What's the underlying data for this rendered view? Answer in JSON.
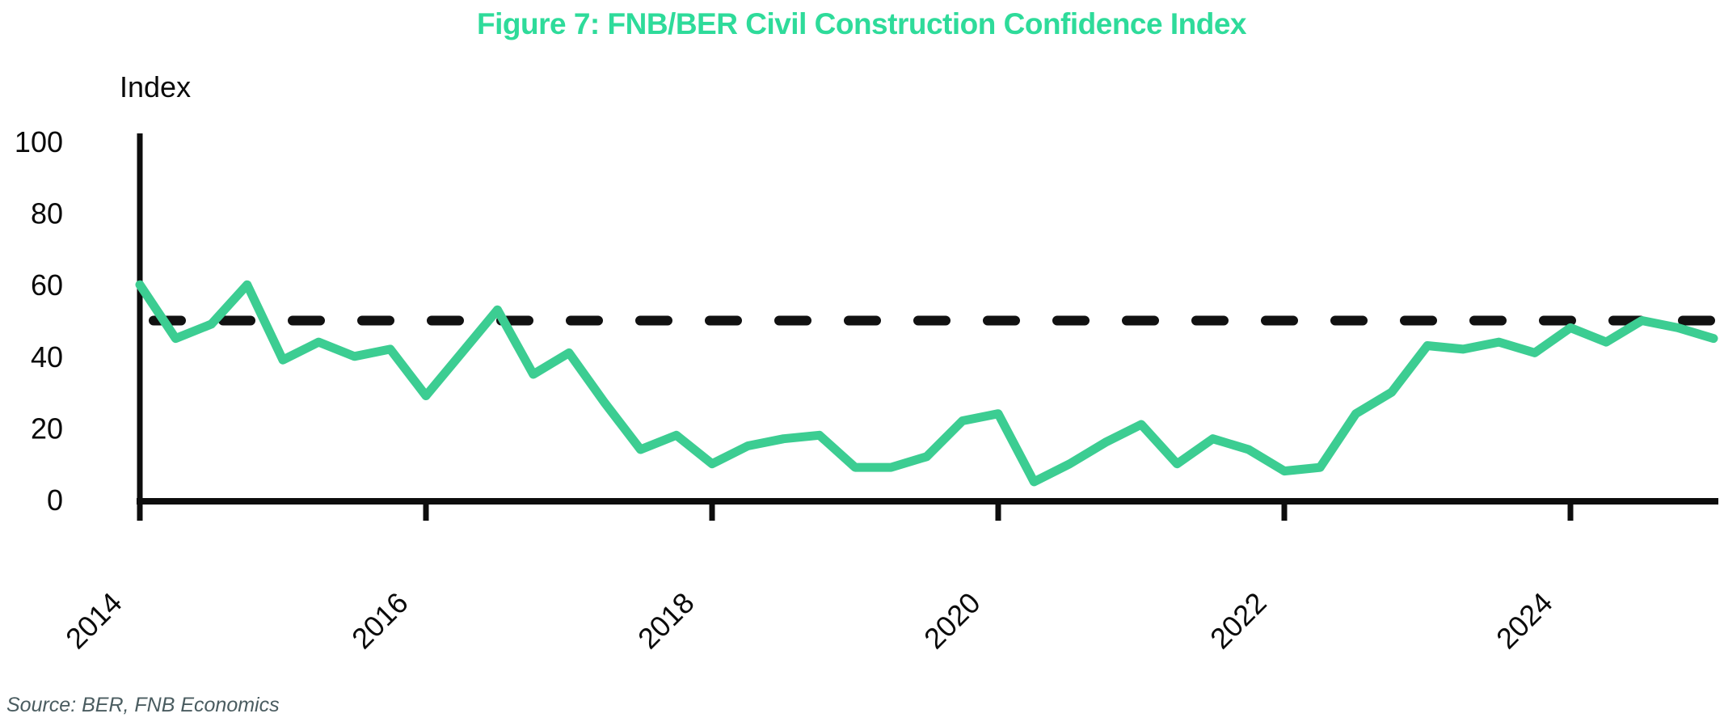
{
  "title": "Figure 7: FNB/BER Civil Construction Confidence Index",
  "y_axis_label": "Index",
  "source": "Source: BER, FNB Economics",
  "colors": {
    "title_green": "#2edb9a",
    "line_green": "#3ccd92",
    "axis_black": "#0d0d0d",
    "dash_black": "#111111",
    "source_gray": "#4a5c60"
  },
  "chart_data": {
    "type": "line",
    "x": [
      "2014Q1",
      "2014Q2",
      "2014Q3",
      "2014Q4",
      "2015Q1",
      "2015Q2",
      "2015Q3",
      "2015Q4",
      "2016Q1",
      "2016Q2",
      "2016Q3",
      "2016Q4",
      "2017Q1",
      "2017Q2",
      "2017Q3",
      "2017Q4",
      "2018Q1",
      "2018Q2",
      "2018Q3",
      "2018Q4",
      "2019Q1",
      "2019Q2",
      "2019Q3",
      "2019Q4",
      "2020Q1",
      "2020Q2",
      "2020Q3",
      "2020Q4",
      "2021Q1",
      "2021Q2",
      "2021Q3",
      "2021Q4",
      "2022Q1",
      "2022Q2",
      "2022Q3",
      "2022Q4",
      "2023Q1",
      "2023Q2",
      "2023Q3",
      "2023Q4",
      "2024Q1",
      "2024Q2",
      "2024Q3",
      "2024Q4",
      "2025Q1"
    ],
    "series": [
      {
        "name": "FNB/BER Civil Construction Confidence Index",
        "values": [
          60,
          45,
          49,
          60,
          39,
          44,
          40,
          42,
          29,
          41,
          53,
          35,
          41,
          27,
          14,
          18,
          10,
          15,
          17,
          18,
          9,
          9,
          12,
          22,
          24,
          5,
          10,
          16,
          21,
          10,
          17,
          14,
          8,
          9,
          24,
          30,
          43,
          42,
          44,
          41,
          48,
          44,
          50,
          48,
          45
        ]
      }
    ],
    "reference_line": {
      "value": 50,
      "style": "dashed"
    },
    "title": "Figure 7: FNB/BER Civil Construction Confidence Index",
    "xlabel": "",
    "ylabel": "Index",
    "ylim": [
      0,
      100
    ],
    "yticks": [
      "0",
      "20",
      "40",
      "60",
      "80",
      "100"
    ],
    "xticks": [
      "2014",
      "2016",
      "2018",
      "2020",
      "2022",
      "2024"
    ],
    "grid": false,
    "legend_position": "none"
  }
}
